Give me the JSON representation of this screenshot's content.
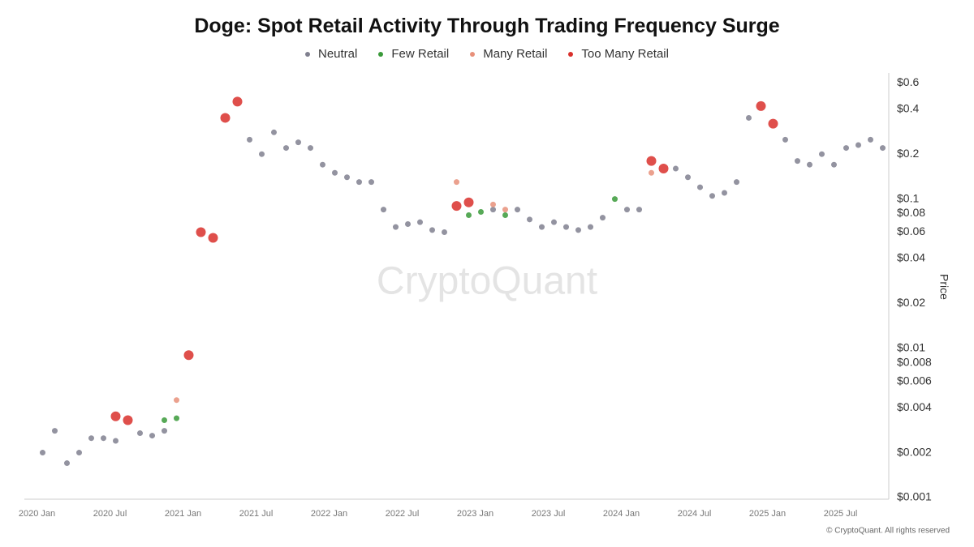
{
  "chart_data": {
    "type": "scatter",
    "title": "Doge: Spot Retail Activity Through Trading Frequency Surge",
    "y_axis_label": "Price",
    "watermark": "CryptoQuant",
    "footer": "© CryptoQuant. All rights reserved",
    "log_y": true,
    "grid": false,
    "legend": "top",
    "xlim": [
      "2019-12",
      "2025-11"
    ],
    "xticks": [
      {
        "value": "2020-01",
        "label": "2020 Jan"
      },
      {
        "value": "2020-07",
        "label": "2020 Jul"
      },
      {
        "value": "2021-01",
        "label": "2021 Jan"
      },
      {
        "value": "2021-07",
        "label": "2021 Jul"
      },
      {
        "value": "2022-01",
        "label": "2022 Jan"
      },
      {
        "value": "2022-07",
        "label": "2022 Jul"
      },
      {
        "value": "2023-01",
        "label": "2023 Jan"
      },
      {
        "value": "2023-07",
        "label": "2023 Jul"
      },
      {
        "value": "2024-01",
        "label": "2024 Jan"
      },
      {
        "value": "2024-07",
        "label": "2024 Jul"
      },
      {
        "value": "2025-01",
        "label": "2025 Jan"
      },
      {
        "value": "2025-07",
        "label": "2025 Jul"
      }
    ],
    "ylim": [
      0.001,
      0.7
    ],
    "yticks": [
      {
        "value": 0.001,
        "label": "$0.001"
      },
      {
        "value": 0.002,
        "label": "$0.002"
      },
      {
        "value": 0.004,
        "label": "$0.004"
      },
      {
        "value": 0.006,
        "label": "$0.006"
      },
      {
        "value": 0.008,
        "label": "$0.008"
      },
      {
        "value": 0.01,
        "label": "$0.01"
      },
      {
        "value": 0.02,
        "label": "$0.02"
      },
      {
        "value": 0.04,
        "label": "$0.04"
      },
      {
        "value": 0.06,
        "label": "$0.06"
      },
      {
        "value": 0.08,
        "label": "$0.08"
      },
      {
        "value": 0.1,
        "label": "$0.1"
      },
      {
        "value": 0.2,
        "label": "$0.2"
      },
      {
        "value": 0.4,
        "label": "$0.4"
      },
      {
        "value": 0.6,
        "label": "$0.6"
      }
    ],
    "series": [
      {
        "name": "Neutral",
        "color": "#80808f",
        "x": [
          "2020-01",
          "2020-02",
          "2020-03",
          "2020-04",
          "2020-05",
          "2020-06",
          "2020-07",
          "2020-09",
          "2020-10",
          "2020-11",
          "2021-06",
          "2021-07",
          "2021-08",
          "2021-09",
          "2021-10",
          "2021-11",
          "2021-12",
          "2022-01",
          "2022-02",
          "2022-03",
          "2022-04",
          "2022-05",
          "2022-06",
          "2022-07",
          "2022-08",
          "2022-09",
          "2022-10",
          "2023-02",
          "2023-04",
          "2023-05",
          "2023-06",
          "2023-07",
          "2023-08",
          "2023-09",
          "2023-10",
          "2023-11",
          "2024-01",
          "2024-02",
          "2024-05",
          "2024-06",
          "2024-07",
          "2024-08",
          "2024-09",
          "2024-10",
          "2024-11",
          "2025-02",
          "2025-03",
          "2025-04",
          "2025-05",
          "2025-06",
          "2025-07",
          "2025-08",
          "2025-09",
          "2025-10"
        ],
        "values": [
          0.002,
          0.0028,
          0.0017,
          0.002,
          0.0025,
          0.0025,
          0.0024,
          0.0027,
          0.0026,
          0.0028,
          0.25,
          0.2,
          0.28,
          0.22,
          0.24,
          0.22,
          0.17,
          0.15,
          0.14,
          0.13,
          0.13,
          0.085,
          0.065,
          0.068,
          0.07,
          0.062,
          0.06,
          0.085,
          0.085,
          0.073,
          0.065,
          0.07,
          0.065,
          0.062,
          0.065,
          0.075,
          0.085,
          0.085,
          0.16,
          0.14,
          0.12,
          0.105,
          0.11,
          0.13,
          0.35,
          0.25,
          0.18,
          0.17,
          0.2,
          0.17,
          0.22,
          0.23,
          0.25,
          0.22
        ]
      },
      {
        "name": "Few Retail",
        "color": "#3a9a3a",
        "x": [
          "2020-11",
          "2020-12",
          "2022-12",
          "2023-01",
          "2023-03",
          "2023-12"
        ],
        "values": [
          0.0033,
          0.0034,
          0.078,
          0.082,
          0.078,
          0.1
        ]
      },
      {
        "name": "Many Retail",
        "color": "#e8907a",
        "x": [
          "2020-12",
          "2022-11",
          "2023-02",
          "2023-03",
          "2024-03"
        ],
        "values": [
          0.0045,
          0.13,
          0.092,
          0.085,
          0.15
        ]
      },
      {
        "name": "Too Many Retail",
        "color": "#d9302c",
        "x": [
          "2020-07",
          "2020-08",
          "2021-01",
          "2021-02",
          "2021-03",
          "2021-04",
          "2021-05",
          "2022-11",
          "2022-12",
          "2024-03",
          "2024-04",
          "2024-12",
          "2025-01"
        ],
        "values": [
          0.0035,
          0.0033,
          0.009,
          0.06,
          0.055,
          0.35,
          0.45,
          0.09,
          0.095,
          0.18,
          0.16,
          0.42,
          0.32
        ]
      }
    ]
  }
}
